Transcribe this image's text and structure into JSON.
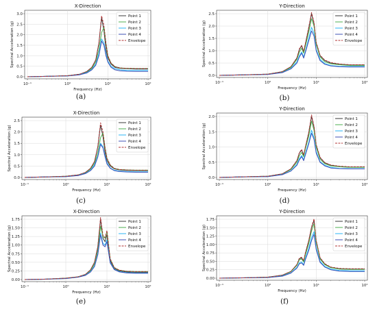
{
  "figure": {
    "series_names": [
      "Point 1",
      "Point 2",
      "Point 3",
      "Point 4",
      "Envelope"
    ],
    "colors": {
      "Point 1": "#3a3a3a",
      "Point 2": "#4caf50",
      "Point 3": "#29b6f6",
      "Point 4": "#3f51b5",
      "Envelope": "#b03030"
    },
    "xlabel": "Frequency (Hz)",
    "ylabel": "Spectral Acceleration (g)"
  },
  "chart_data": [
    {
      "type": "line",
      "caption": "(a)",
      "title": "X-Direction",
      "xscale": "log",
      "xlim": [
        0.1,
        100
      ],
      "ylim": [
        0,
        3.0
      ],
      "yticks": [
        "0.0",
        "0.5",
        "1.0",
        "1.5",
        "2.0",
        "2.5",
        "3.0"
      ],
      "xticks": [
        "10⁻¹",
        "10⁰",
        "10¹",
        "10²"
      ],
      "grid": true,
      "legend": "top-right",
      "x": [
        0.1,
        0.3,
        1,
        2,
        3,
        4,
        5,
        6,
        7,
        8,
        9,
        10,
        12,
        15,
        20,
        30,
        50,
        100
      ],
      "series": [
        {
          "name": "Point 1",
          "values": [
            0.0,
            0.02,
            0.05,
            0.12,
            0.25,
            0.45,
            0.8,
            1.6,
            2.8,
            2.2,
            1.3,
            0.9,
            0.6,
            0.45,
            0.4,
            0.38,
            0.37,
            0.37
          ]
        },
        {
          "name": "Point 2",
          "values": [
            0.0,
            0.02,
            0.05,
            0.11,
            0.22,
            0.4,
            0.7,
            1.3,
            2.1,
            2.35,
            1.6,
            1.0,
            0.65,
            0.48,
            0.42,
            0.4,
            0.39,
            0.39
          ]
        },
        {
          "name": "Point 3",
          "values": [
            0.0,
            0.02,
            0.04,
            0.1,
            0.2,
            0.35,
            0.6,
            1.1,
            1.8,
            1.6,
            1.1,
            0.75,
            0.5,
            0.38,
            0.33,
            0.3,
            0.3,
            0.3
          ]
        },
        {
          "name": "Point 4",
          "values": [
            0.0,
            0.02,
            0.04,
            0.09,
            0.18,
            0.33,
            0.55,
            1.0,
            1.7,
            1.5,
            1.0,
            0.7,
            0.45,
            0.33,
            0.28,
            0.26,
            0.25,
            0.25
          ]
        },
        {
          "name": "Envelope",
          "values": [
            0.0,
            0.02,
            0.05,
            0.12,
            0.25,
            0.45,
            0.8,
            1.6,
            2.9,
            2.45,
            1.6,
            1.0,
            0.65,
            0.48,
            0.42,
            0.4,
            0.39,
            0.39
          ]
        }
      ]
    },
    {
      "type": "line",
      "caption": "(b)",
      "title": "Y-Direction",
      "xscale": "log",
      "xlim": [
        0.1,
        100
      ],
      "ylim": [
        0,
        2.5
      ],
      "yticks": [
        "0.0",
        "0.5",
        "1.0",
        "1.5",
        "2.0",
        "2.5"
      ],
      "xticks": [
        "10⁻¹",
        "10⁰",
        "10¹",
        "10²"
      ],
      "grid": true,
      "legend": "top-right",
      "x": [
        0.1,
        0.3,
        1,
        2,
        3,
        4,
        4.5,
        5,
        5.5,
        6,
        7,
        8,
        9,
        10,
        12,
        15,
        20,
        30,
        50,
        100
      ],
      "series": [
        {
          "name": "Point 1",
          "values": [
            0.0,
            0.02,
            0.05,
            0.15,
            0.35,
            0.7,
            1.05,
            1.2,
            0.95,
            1.3,
            1.9,
            2.5,
            2.1,
            1.3,
            0.8,
            0.6,
            0.5,
            0.45,
            0.42,
            0.42
          ]
        },
        {
          "name": "Point 2",
          "values": [
            0.0,
            0.02,
            0.05,
            0.14,
            0.32,
            0.65,
            0.95,
            1.1,
            0.9,
            1.2,
            1.75,
            2.3,
            2.0,
            1.25,
            0.75,
            0.55,
            0.47,
            0.43,
            0.4,
            0.4
          ]
        },
        {
          "name": "Point 3",
          "values": [
            0.0,
            0.02,
            0.04,
            0.12,
            0.28,
            0.55,
            0.8,
            0.95,
            0.75,
            1.0,
            1.5,
            1.95,
            1.7,
            1.05,
            0.65,
            0.48,
            0.4,
            0.37,
            0.36,
            0.36
          ]
        },
        {
          "name": "Point 4",
          "values": [
            0.0,
            0.02,
            0.04,
            0.11,
            0.26,
            0.5,
            0.75,
            0.9,
            0.7,
            0.95,
            1.4,
            1.8,
            1.6,
            1.0,
            0.6,
            0.45,
            0.38,
            0.35,
            0.34,
            0.34
          ]
        },
        {
          "name": "Envelope",
          "values": [
            0.0,
            0.02,
            0.05,
            0.15,
            0.35,
            0.72,
            1.08,
            1.22,
            0.98,
            1.32,
            1.95,
            2.55,
            2.15,
            1.35,
            0.82,
            0.62,
            0.52,
            0.46,
            0.43,
            0.43
          ]
        }
      ]
    },
    {
      "type": "line",
      "caption": "(c)",
      "title": "X-Direction",
      "xscale": "log",
      "xlim": [
        0.1,
        100
      ],
      "ylim": [
        0,
        2.5
      ],
      "yticks": [
        "0.0",
        "0.5",
        "1.0",
        "1.5",
        "2.0",
        "2.5"
      ],
      "xticks": [
        "10⁻¹",
        "10⁰",
        "10¹",
        "10²"
      ],
      "grid": true,
      "legend": "top-right",
      "x": [
        0.1,
        0.3,
        1,
        2,
        3,
        4,
        5,
        6,
        7,
        8,
        9,
        10,
        12,
        15,
        20,
        30,
        50,
        100
      ],
      "series": [
        {
          "name": "Point 1",
          "values": [
            0.0,
            0.02,
            0.05,
            0.11,
            0.22,
            0.4,
            0.7,
            1.35,
            2.3,
            1.8,
            1.1,
            0.75,
            0.5,
            0.38,
            0.33,
            0.31,
            0.3,
            0.3
          ]
        },
        {
          "name": "Point 2",
          "values": [
            0.0,
            0.02,
            0.05,
            0.1,
            0.2,
            0.37,
            0.62,
            1.1,
            1.75,
            1.95,
            1.3,
            0.85,
            0.55,
            0.4,
            0.35,
            0.33,
            0.32,
            0.32
          ]
        },
        {
          "name": "Point 3",
          "values": [
            0.0,
            0.02,
            0.04,
            0.09,
            0.18,
            0.32,
            0.55,
            0.95,
            1.5,
            1.35,
            0.95,
            0.65,
            0.42,
            0.32,
            0.28,
            0.26,
            0.25,
            0.25
          ]
        },
        {
          "name": "Point 4",
          "values": [
            0.0,
            0.02,
            0.04,
            0.08,
            0.17,
            0.3,
            0.5,
            0.9,
            1.45,
            1.3,
            0.9,
            0.6,
            0.4,
            0.3,
            0.26,
            0.24,
            0.23,
            0.23
          ]
        },
        {
          "name": "Envelope",
          "values": [
            0.0,
            0.02,
            0.05,
            0.11,
            0.22,
            0.4,
            0.7,
            1.35,
            2.4,
            2.0,
            1.3,
            0.85,
            0.55,
            0.4,
            0.35,
            0.33,
            0.32,
            0.32
          ]
        }
      ]
    },
    {
      "type": "line",
      "caption": "(d)",
      "title": "Y-Direction",
      "xscale": "log",
      "xlim": [
        0.1,
        100
      ],
      "ylim": [
        0,
        2.0
      ],
      "yticks": [
        "0.0",
        "0.5",
        "1.0",
        "1.5",
        "2.0"
      ],
      "xticks": [
        "10⁻¹",
        "10⁰",
        "10¹",
        "10²"
      ],
      "grid": true,
      "legend": "top-right",
      "x": [
        0.1,
        0.3,
        1,
        2,
        3,
        4,
        4.5,
        5,
        5.5,
        6,
        7,
        8,
        9,
        10,
        12,
        15,
        20,
        30,
        50,
        100
      ],
      "series": [
        {
          "name": "Point 1",
          "values": [
            0.0,
            0.02,
            0.04,
            0.12,
            0.28,
            0.55,
            0.8,
            0.9,
            0.72,
            1.0,
            1.45,
            2.0,
            1.65,
            1.05,
            0.65,
            0.48,
            0.4,
            0.36,
            0.34,
            0.34
          ]
        },
        {
          "name": "Point 2",
          "values": [
            0.0,
            0.02,
            0.04,
            0.11,
            0.26,
            0.5,
            0.72,
            0.82,
            0.68,
            0.95,
            1.35,
            1.85,
            1.55,
            1.0,
            0.6,
            0.45,
            0.38,
            0.35,
            0.33,
            0.33
          ]
        },
        {
          "name": "Point 3",
          "values": [
            0.0,
            0.02,
            0.03,
            0.1,
            0.22,
            0.43,
            0.62,
            0.72,
            0.58,
            0.8,
            1.15,
            1.55,
            1.3,
            0.85,
            0.52,
            0.4,
            0.33,
            0.3,
            0.29,
            0.29
          ]
        },
        {
          "name": "Point 4",
          "values": [
            0.0,
            0.02,
            0.03,
            0.09,
            0.21,
            0.4,
            0.58,
            0.68,
            0.55,
            0.75,
            1.1,
            1.45,
            1.25,
            0.8,
            0.5,
            0.38,
            0.31,
            0.29,
            0.28,
            0.28
          ]
        },
        {
          "name": "Envelope",
          "values": [
            0.0,
            0.02,
            0.04,
            0.12,
            0.28,
            0.56,
            0.82,
            0.92,
            0.74,
            1.02,
            1.48,
            2.05,
            1.68,
            1.08,
            0.66,
            0.49,
            0.41,
            0.37,
            0.35,
            0.35
          ]
        }
      ]
    },
    {
      "type": "line",
      "caption": "(e)",
      "title": "X-Direction",
      "xscale": "log",
      "xlim": [
        0.1,
        100
      ],
      "ylim": [
        0,
        1.75
      ],
      "yticks": [
        "0.00",
        "0.25",
        "0.50",
        "0.75",
        "1.00",
        "1.25",
        "1.50",
        "1.75"
      ],
      "xticks": [
        "10⁻¹",
        "10⁰",
        "10¹",
        "10²"
      ],
      "grid": true,
      "legend": "top-right",
      "x": [
        0.1,
        0.3,
        1,
        2,
        3,
        4,
        5,
        6,
        7,
        8,
        9,
        10,
        12,
        15,
        20,
        30,
        50,
        100
      ],
      "series": [
        {
          "name": "Point 1",
          "values": [
            0.0,
            0.01,
            0.04,
            0.08,
            0.15,
            0.28,
            0.5,
            0.95,
            1.75,
            1.2,
            1.1,
            1.3,
            0.55,
            0.32,
            0.25,
            0.22,
            0.21,
            0.21
          ]
        },
        {
          "name": "Point 2",
          "values": [
            0.0,
            0.01,
            0.04,
            0.08,
            0.14,
            0.26,
            0.45,
            0.85,
            1.55,
            1.25,
            1.2,
            1.4,
            0.6,
            0.35,
            0.27,
            0.24,
            0.23,
            0.23
          ]
        },
        {
          "name": "Point 3",
          "values": [
            0.0,
            0.01,
            0.03,
            0.07,
            0.13,
            0.23,
            0.4,
            0.75,
            1.35,
            1.05,
            1.0,
            1.15,
            0.5,
            0.3,
            0.23,
            0.2,
            0.19,
            0.19
          ]
        },
        {
          "name": "Point 4",
          "values": [
            0.0,
            0.01,
            0.03,
            0.07,
            0.12,
            0.22,
            0.38,
            0.72,
            1.3,
            1.0,
            0.95,
            1.1,
            0.48,
            0.29,
            0.22,
            0.19,
            0.18,
            0.18
          ]
        },
        {
          "name": "Envelope",
          "values": [
            0.0,
            0.01,
            0.04,
            0.08,
            0.15,
            0.28,
            0.5,
            0.95,
            1.8,
            1.28,
            1.22,
            1.42,
            0.6,
            0.35,
            0.27,
            0.24,
            0.23,
            0.23
          ]
        }
      ]
    },
    {
      "type": "line",
      "caption": "(f)",
      "title": "Y-Direction",
      "xscale": "log",
      "xlim": [
        0.1,
        100
      ],
      "ylim": [
        0,
        1.75
      ],
      "yticks": [
        "0.00",
        "0.25",
        "0.50",
        "0.75",
        "1.00",
        "1.25",
        "1.50",
        "1.75"
      ],
      "xticks": [
        "10⁻¹",
        "10⁰",
        "10¹",
        "10²"
      ],
      "grid": true,
      "legend": "top-right",
      "x": [
        0.1,
        0.3,
        1,
        2,
        3,
        4,
        4.5,
        5,
        5.5,
        6,
        7,
        8,
        9,
        10,
        12,
        15,
        20,
        30,
        50,
        100
      ],
      "series": [
        {
          "name": "Point 1",
          "values": [
            0.0,
            0.01,
            0.03,
            0.09,
            0.2,
            0.4,
            0.58,
            0.6,
            0.5,
            0.75,
            1.1,
            1.5,
            1.72,
            1.1,
            0.6,
            0.42,
            0.32,
            0.28,
            0.27,
            0.27
          ]
        },
        {
          "name": "Point 2",
          "values": [
            0.0,
            0.01,
            0.03,
            0.08,
            0.19,
            0.38,
            0.55,
            0.57,
            0.48,
            0.7,
            1.02,
            1.4,
            1.62,
            1.05,
            0.57,
            0.4,
            0.31,
            0.27,
            0.26,
            0.26
          ]
        },
        {
          "name": "Point 3",
          "values": [
            0.0,
            0.01,
            0.02,
            0.07,
            0.16,
            0.32,
            0.46,
            0.48,
            0.4,
            0.6,
            0.88,
            1.2,
            1.38,
            0.9,
            0.5,
            0.35,
            0.27,
            0.23,
            0.22,
            0.22
          ]
        },
        {
          "name": "Point 4",
          "values": [
            0.0,
            0.01,
            0.02,
            0.06,
            0.15,
            0.3,
            0.43,
            0.45,
            0.38,
            0.56,
            0.82,
            1.12,
            1.3,
            0.85,
            0.47,
            0.33,
            0.25,
            0.21,
            0.2,
            0.2
          ]
        },
        {
          "name": "Envelope",
          "values": [
            0.0,
            0.01,
            0.03,
            0.09,
            0.2,
            0.41,
            0.6,
            0.62,
            0.52,
            0.77,
            1.12,
            1.52,
            1.76,
            1.12,
            0.61,
            0.43,
            0.33,
            0.29,
            0.28,
            0.28
          ]
        }
      ]
    }
  ]
}
